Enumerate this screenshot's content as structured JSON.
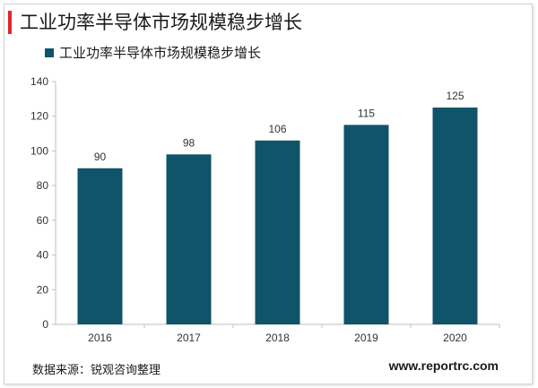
{
  "header": {
    "title": "工业功率半导体市场规模稳步增长"
  },
  "footer": {
    "source": "数据来源：锐观咨询整理",
    "website": "www.reportrc.com"
  },
  "colors": {
    "accent": "#e0262b",
    "bar": "#0f5468"
  },
  "chart_data": {
    "type": "bar",
    "categories": [
      "2016",
      "2017",
      "2018",
      "2019",
      "2020"
    ],
    "series": [
      {
        "name": "工业功率半导体市场规模稳步增长",
        "values": [
          90,
          98,
          106,
          115,
          125
        ]
      }
    ],
    "ylim": [
      0,
      140
    ],
    "yticks": [
      0,
      20,
      40,
      60,
      80,
      100,
      120,
      140
    ],
    "grid": false,
    "legend": "top-left"
  }
}
